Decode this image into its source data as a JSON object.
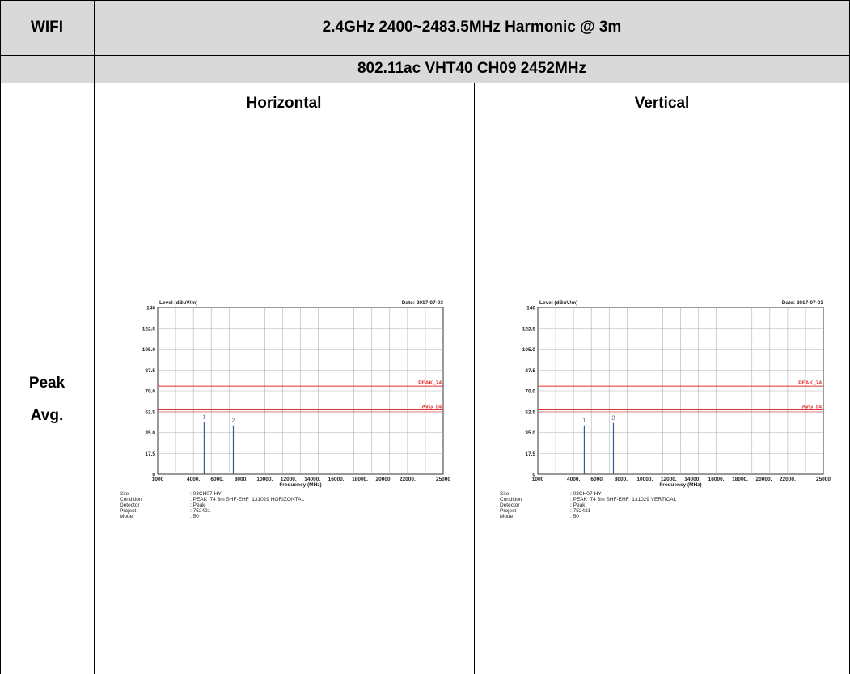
{
  "table": {
    "row1": {
      "label": "WIFI",
      "title": "2.4GHz 2400~2483.5MHz Harmonic @ 3m"
    },
    "row2": {
      "title": "802.11ac VHT40 CH09 2452MHz"
    },
    "row3": {
      "left": "Horizontal",
      "right": "Vertical"
    },
    "row4": {
      "label_line1": "Peak",
      "label_line2": "Avg."
    }
  },
  "charts": {
    "ylabel": "Level (dBuV/m)",
    "date": "Date: 2017-07-03",
    "xlabel": "Frequency (MHz)",
    "y_ticks": [
      "140",
      "122.5",
      "105.0",
      "87.5",
      "70.0",
      "52.5",
      "35.0",
      "17.5",
      "0"
    ],
    "x_ticks": [
      "1000",
      "4000.",
      "6000.",
      "8000.",
      "10000.",
      "12000.",
      "14000.",
      "16000.",
      "18000.",
      "20000.",
      "22000.",
      "25000"
    ],
    "limit_labels": [
      "PEAK_74",
      "AVG_54"
    ],
    "info_keys": [
      "Site",
      "Condition",
      "Detector",
      "Project",
      "Mode"
    ],
    "horizontal_info": [
      ": 03CH07-HY",
      ": PEAK_74 3m SHF-EHF_131029 HORIZONTAL",
      ": Peak",
      ": 752421",
      ": 50"
    ],
    "vertical_info": [
      ": 03CH07-HY",
      ": PEAK_74 3m SHF-EHF_131029 VERTICAL",
      ": Peak",
      ": 752421",
      ": 50"
    ],
    "colors": {
      "limit": "#e03030",
      "marker": "#3a5a8a",
      "grid": "#b0b0b0"
    }
  },
  "chart_data": [
    {
      "type": "bar",
      "title": "",
      "ylabel": "Level (dBuV/m)",
      "xlabel": "Frequency (MHz)",
      "xlim": [
        1000,
        25000
      ],
      "ylim": [
        0,
        140
      ],
      "grid": true,
      "limits": [
        {
          "name": "PEAK_74",
          "value": 74
        },
        {
          "name": "AVG_54",
          "value": 54
        }
      ],
      "markers": [
        {
          "label": "1",
          "x": 4904,
          "y": 44
        },
        {
          "label": "2",
          "x": 7356,
          "y": 41
        }
      ]
    },
    {
      "type": "bar",
      "title": "",
      "ylabel": "Level (dBuV/m)",
      "xlabel": "Frequency (MHz)",
      "xlim": [
        1000,
        25000
      ],
      "ylim": [
        0,
        140
      ],
      "grid": true,
      "limits": [
        {
          "name": "PEAK_74",
          "value": 74
        },
        {
          "name": "AVG_54",
          "value": 54
        }
      ],
      "markers": [
        {
          "label": "1",
          "x": 4904,
          "y": 41
        },
        {
          "label": "2",
          "x": 7356,
          "y": 43
        }
      ]
    }
  ]
}
